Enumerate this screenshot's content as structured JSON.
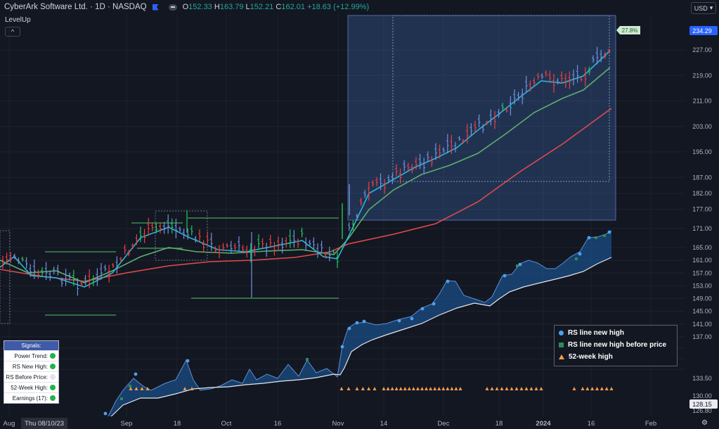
{
  "header": {
    "title": "CyberArk Software Ltd. · 1D · NASDAQ",
    "o_label": "O",
    "o_value": "152.33",
    "h_label": "H",
    "h_value": "163.79",
    "l_label": "L",
    "l_value": "152.21",
    "c_label": "C",
    "c_value": "162.01",
    "change": "+18.63 (+12.99%)",
    "indicator": "LevelUp",
    "collapse_glyph": "^",
    "currency": "USD"
  },
  "signals": {
    "title": "Signals:",
    "rows": [
      {
        "label": "Power Trend:",
        "state": "green"
      },
      {
        "label": "RS New High:",
        "state": "green"
      },
      {
        "label": "RS Before Price:",
        "state": "off"
      },
      {
        "label": "52-Week High:",
        "state": "green"
      },
      {
        "label": "Earnings (17):",
        "state": "green"
      }
    ]
  },
  "legend": {
    "items": [
      {
        "label": "RS line new high",
        "shape": "circle",
        "color": "#4aa3f0"
      },
      {
        "label": "RS line new high before price",
        "shape": "square",
        "color": "#2e8b57"
      },
      {
        "label": "52-week high",
        "shape": "triangle",
        "color": "#f39c4a"
      }
    ]
  },
  "chart_data": {
    "type": "candlestick",
    "symbol": "CyberArk Software Ltd.",
    "y_axis_ticks": [
      "227.00",
      "219.00",
      "211.00",
      "203.00",
      "195.00",
      "187.00",
      "182.00",
      "177.00",
      "171.00",
      "165.00",
      "161.00",
      "157.00",
      "153.00",
      "149.00",
      "145.00",
      "141.00",
      "137.00",
      "133.50",
      "130.00",
      "126.80"
    ],
    "price_marker": "234.29",
    "price_marker_bottom": "128.15",
    "x_axis_ticks": [
      "Aug",
      "Sep",
      "18",
      "Oct",
      "16",
      "Nov",
      "14",
      "Dec",
      "18",
      "2024",
      "16",
      "Feb"
    ],
    "crosshair_date": "Thu 08/10/23",
    "measure_label": "27.8%",
    "price_range_visible": [
      126.8,
      234.29
    ],
    "colors": {
      "up": "#4b89ff",
      "down": "#ef3e3e",
      "volume_up": "#22c55e",
      "ma_fast": "#2bb5d8",
      "ma_mid": "#5fae6e",
      "ma_slow": "#e04b4b",
      "rs_line": "#e6e8ee",
      "rs_fill": "#1e5fa8"
    },
    "levels": [
      {
        "price": 163.5,
        "label": "pivot-1"
      },
      {
        "price": 148.0,
        "label": "base-low-1"
      },
      {
        "price": 173.5,
        "label": "base-high"
      },
      {
        "price": 152.0,
        "label": "base-low"
      }
    ]
  }
}
